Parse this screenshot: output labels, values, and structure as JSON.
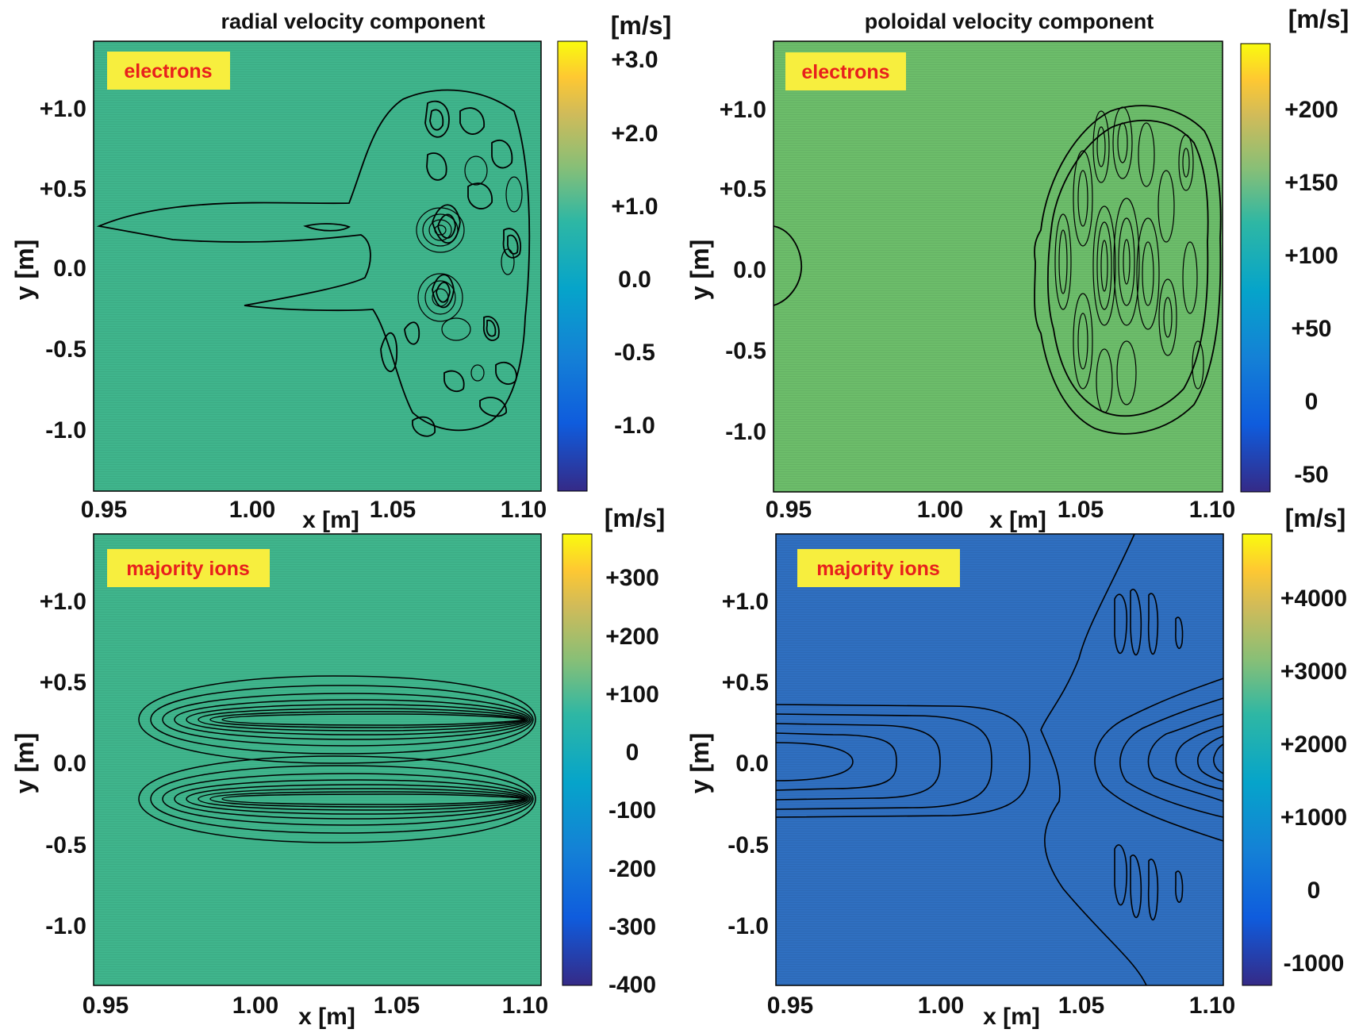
{
  "figure": {
    "titles": [
      "radial velocity component",
      "poloidal velocity component"
    ]
  },
  "chart_data": [
    {
      "type": "heatmap",
      "title": "radial velocity component",
      "species_label": "electrons",
      "xlabel": "x [m]",
      "ylabel": "y [m]",
      "x_ticks": [
        "0.95",
        "1.00",
        "1.05",
        "1.10"
      ],
      "y_ticks": [
        "+1.0",
        "+0.5",
        "0.0",
        "-0.5",
        "-1.0"
      ],
      "xlim": [
        0.95,
        1.1
      ],
      "ylim": [
        -1.4,
        1.4
      ],
      "colorbar": {
        "unit": "[m/s]",
        "ticks": [
          "+3.0",
          "+2.0",
          "+1.0",
          "0.0",
          "-0.5",
          "-1.0"
        ]
      },
      "background_color": "#3fb58c"
    },
    {
      "type": "heatmap",
      "title": "poloidal velocity component",
      "species_label": "electrons",
      "xlabel": "x [m]",
      "ylabel": "y [m]",
      "x_ticks": [
        "0.95",
        "1.00",
        "1.05",
        "1.10"
      ],
      "y_ticks": [
        "+1.0",
        "+0.5",
        "0.0",
        "-0.5",
        "-1.0"
      ],
      "xlim": [
        0.95,
        1.1
      ],
      "ylim": [
        -1.4,
        1.4
      ],
      "colorbar": {
        "unit": "[m/s]",
        "ticks": [
          "+200",
          "+150",
          "+100",
          "+50",
          "0",
          "-50"
        ]
      },
      "background_color": "#6cbd6a"
    },
    {
      "type": "heatmap",
      "title": "",
      "species_label": "majority ions",
      "xlabel": "x [m]",
      "ylabel": "y [m]",
      "x_ticks": [
        "0.95",
        "1.00",
        "1.05",
        "1.10"
      ],
      "y_ticks": [
        "+1.0",
        "+0.5",
        "0.0",
        "-0.5",
        "-1.0"
      ],
      "xlim": [
        0.95,
        1.1
      ],
      "ylim": [
        -1.4,
        1.4
      ],
      "colorbar": {
        "unit": "[m/s]",
        "ticks": [
          "+300",
          "+200",
          "+100",
          "0",
          "-100",
          "-200",
          "-300",
          "-400"
        ]
      },
      "background_color": "#3fb58c"
    },
    {
      "type": "heatmap",
      "title": "",
      "species_label": "majority ions",
      "xlabel": "x [m]",
      "ylabel": "y [m]",
      "x_ticks": [
        "0.95",
        "1.00",
        "1.05",
        "1.10"
      ],
      "y_ticks": [
        "+1.0",
        "+0.5",
        "0.0",
        "-0.5",
        "-1.0"
      ],
      "xlim": [
        0.95,
        1.1
      ],
      "ylim": [
        -1.4,
        1.4
      ],
      "colorbar": {
        "unit": "[m/s]",
        "ticks": [
          "+4000",
          "+3000",
          "+2000",
          "+1000",
          "0",
          "-1000"
        ]
      },
      "background_color": "#2f6fc0"
    }
  ]
}
